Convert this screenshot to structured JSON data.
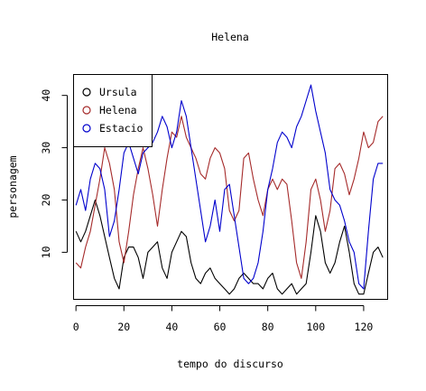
{
  "chart_data": {
    "type": "line",
    "title": "Helena",
    "xlabel": "tempo do discurso",
    "ylabel": "personagem",
    "xlim": [
      -1,
      130
    ],
    "ylim": [
      1,
      44
    ],
    "xticks": [
      0,
      20,
      40,
      60,
      80,
      100,
      120
    ],
    "yticks": [
      10,
      20,
      30,
      40
    ],
    "legend": {
      "position": "top-left",
      "marker": "open-circle"
    },
    "series": [
      {
        "name": "Ursula",
        "color": "#000000",
        "x": [
          0,
          2,
          4,
          6,
          8,
          10,
          12,
          14,
          16,
          18,
          20,
          22,
          24,
          26,
          28,
          30,
          32,
          34,
          36,
          38,
          40,
          42,
          44,
          46,
          48,
          50,
          52,
          54,
          56,
          58,
          60,
          62,
          64,
          66,
          68,
          70,
          72,
          74,
          76,
          78,
          80,
          82,
          84,
          86,
          88,
          90,
          92,
          94,
          96,
          98,
          100,
          102,
          104,
          106,
          108,
          110,
          112,
          114,
          116,
          118,
          120,
          122,
          124,
          126,
          128
        ],
        "y": [
          14,
          12,
          14,
          17,
          20,
          17,
          13,
          9,
          5,
          3,
          9,
          11,
          11,
          9,
          5,
          10,
          11,
          12,
          7,
          5,
          10,
          12,
          14,
          13,
          8,
          5,
          4,
          6,
          7,
          5,
          4,
          3,
          2,
          3,
          5,
          6,
          5,
          4,
          4,
          3,
          5,
          6,
          3,
          2,
          3,
          4,
          2,
          3,
          4,
          10,
          17,
          14,
          8,
          6,
          8,
          12,
          15,
          10,
          4,
          2,
          2,
          6,
          10,
          11,
          9
        ]
      },
      {
        "name": "Helena",
        "color": "#a52a2a",
        "x": [
          0,
          2,
          4,
          6,
          8,
          10,
          12,
          14,
          16,
          18,
          20,
          22,
          24,
          26,
          28,
          30,
          32,
          34,
          36,
          38,
          40,
          42,
          44,
          46,
          48,
          50,
          52,
          54,
          56,
          58,
          60,
          62,
          64,
          66,
          68,
          70,
          72,
          74,
          76,
          78,
          80,
          82,
          84,
          86,
          88,
          90,
          92,
          94,
          96,
          98,
          100,
          102,
          104,
          106,
          108,
          110,
          112,
          114,
          116,
          118,
          120,
          122,
          124,
          126,
          128
        ],
        "y": [
          8,
          7,
          11,
          14,
          19,
          24,
          30,
          27,
          22,
          12,
          8,
          14,
          21,
          26,
          30,
          26,
          21,
          15,
          22,
          28,
          33,
          32,
          36,
          32,
          30,
          28,
          25,
          24,
          28,
          30,
          29,
          26,
          18,
          16,
          18,
          28,
          29,
          24,
          20,
          17,
          22,
          24,
          22,
          24,
          23,
          16,
          8,
          5,
          12,
          22,
          24,
          20,
          14,
          18,
          26,
          27,
          25,
          21,
          24,
          28,
          33,
          30,
          31,
          35,
          36
        ]
      },
      {
        "name": "Estacio",
        "color": "#0000cd",
        "x": [
          0,
          2,
          4,
          6,
          8,
          10,
          12,
          14,
          16,
          18,
          20,
          22,
          24,
          26,
          28,
          30,
          32,
          34,
          36,
          38,
          40,
          42,
          44,
          46,
          48,
          50,
          52,
          54,
          56,
          58,
          60,
          62,
          64,
          66,
          68,
          70,
          72,
          74,
          76,
          78,
          80,
          82,
          84,
          86,
          88,
          90,
          92,
          94,
          96,
          98,
          100,
          102,
          104,
          106,
          108,
          110,
          112,
          114,
          116,
          118,
          120,
          122,
          124,
          126,
          128
        ],
        "y": [
          19,
          22,
          18,
          24,
          27,
          26,
          22,
          13,
          16,
          22,
          29,
          31,
          28,
          25,
          29,
          30,
          31,
          33,
          36,
          34,
          30,
          33,
          39,
          36,
          30,
          24,
          18,
          12,
          15,
          20,
          14,
          22,
          23,
          17,
          11,
          5,
          4,
          5,
          8,
          14,
          22,
          26,
          31,
          33,
          32,
          30,
          34,
          36,
          39,
          42,
          37,
          33,
          29,
          22,
          20,
          19,
          16,
          12,
          10,
          4,
          3,
          14,
          24,
          27,
          27
        ]
      }
    ]
  }
}
